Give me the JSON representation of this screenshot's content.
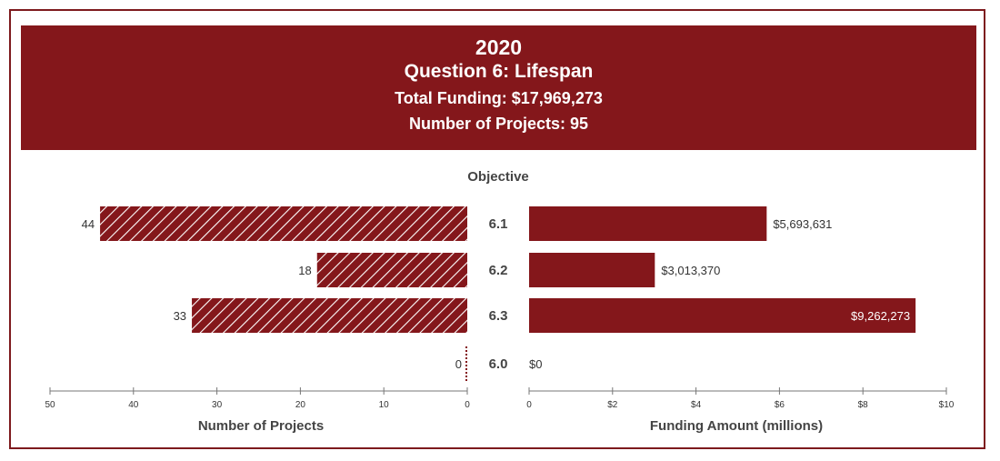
{
  "header": {
    "year": "2020",
    "question": "Question 6: Lifespan",
    "total_funding": "Total Funding: $17,969,273",
    "num_projects": "Number of Projects: 95"
  },
  "colors": {
    "primary": "#84171b",
    "text": "#333333",
    "axis": "#777777"
  },
  "chart_data": [
    {
      "type": "bar",
      "orientation": "horizontal-reversed",
      "fill": "hatched",
      "categories": [
        "6.1",
        "6.2",
        "6.3",
        "6.0"
      ],
      "values": [
        44,
        18,
        33,
        0
      ],
      "value_labels": [
        "44",
        "18",
        "33",
        "0"
      ],
      "xlabel": "Number of Projects",
      "xlim": [
        0,
        50
      ],
      "xticks": [
        "50",
        "40",
        "30",
        "20",
        "10",
        "0"
      ],
      "xtick_values": [
        50,
        40,
        30,
        20,
        10,
        0
      ]
    },
    {
      "type": "bar",
      "orientation": "horizontal",
      "fill": "solid",
      "categories_title": "Objective",
      "categories": [
        "6.1",
        "6.2",
        "6.3",
        "6.0"
      ],
      "values": [
        5693631,
        3013370,
        9262273,
        0
      ],
      "value_labels": [
        "$5,693,631",
        "$3,013,370",
        "$9,262,273",
        "$0"
      ],
      "xlabel": "Funding Amount (millions)",
      "xlim": [
        0,
        10000000
      ],
      "xticks": [
        "0",
        "$2",
        "$4",
        "$6",
        "$8",
        "$10"
      ],
      "xtick_values": [
        0,
        2000000,
        4000000,
        6000000,
        8000000,
        10000000
      ]
    }
  ]
}
